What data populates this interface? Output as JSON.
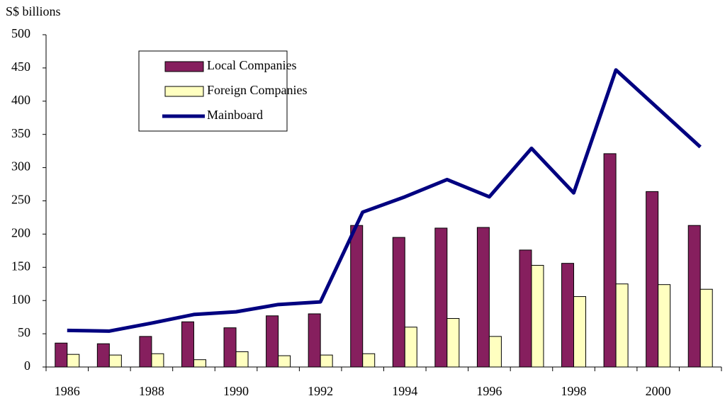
{
  "chart_data": {
    "type": "bar",
    "y_label": "S$ billions",
    "categories": [
      "1986",
      null,
      "1988",
      null,
      "1990",
      null,
      "1992",
      null,
      "1994",
      null,
      "1996",
      null,
      "1998",
      null,
      "2000",
      null
    ],
    "series": [
      {
        "name": "Local Companies",
        "type": "bar",
        "color": "#861f5e",
        "values": [
          36,
          35,
          46,
          68,
          59,
          77,
          80,
          213,
          195,
          209,
          210,
          176,
          156,
          321,
          264,
          213
        ]
      },
      {
        "name": "Foreign Companies",
        "type": "bar",
        "color": "#ffffc0",
        "values": [
          19,
          18,
          20,
          11,
          23,
          17,
          18,
          20,
          60,
          73,
          46,
          153,
          106,
          125,
          124,
          117
        ]
      },
      {
        "name": "Mainboard",
        "type": "line",
        "color": "#000080",
        "values": [
          55,
          54,
          66,
          79,
          83,
          94,
          98,
          233,
          256,
          282,
          256,
          329,
          262,
          447,
          389,
          331
        ]
      }
    ],
    "ylim": [
      0,
      500
    ],
    "yticks": [
      0,
      50,
      100,
      150,
      200,
      250,
      300,
      350,
      400,
      450,
      500
    ]
  }
}
